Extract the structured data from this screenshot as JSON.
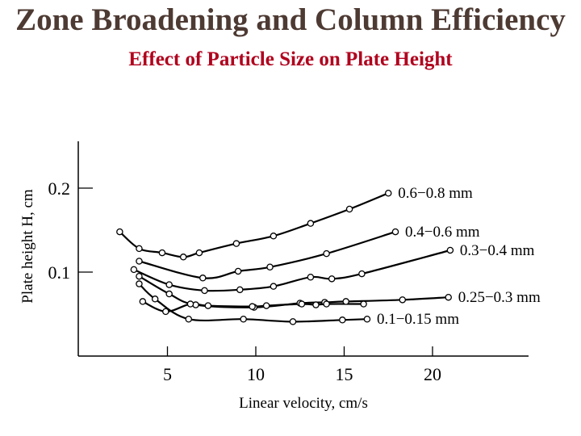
{
  "slide": {
    "title": "Zone Broadening and Column Efficiency",
    "subtitle": "Effect of Particle Size on Plate Height"
  },
  "colors": {
    "title": "#4d3a33",
    "subtitle": "#b0001d",
    "ink": "#000000"
  },
  "chart_data": {
    "type": "line",
    "title": "Effect of Particle Size on Plate Height",
    "xlabel": "Linear velocity, cm/s",
    "ylabel": "Plate height H, cm",
    "xlim": [
      0,
      25
    ],
    "ylim": [
      0,
      0.26
    ],
    "xticks": [
      5,
      10,
      15,
      20
    ],
    "yticks": [
      0.1,
      0.2
    ],
    "grid": false,
    "series": [
      {
        "name": "0.6−0.8 mm",
        "x": [
          2.3,
          3.4,
          4.7,
          5.9,
          6.8,
          8.9,
          11.0,
          13.1,
          15.3,
          17.5
        ],
        "y": [
          0.148,
          0.128,
          0.123,
          0.118,
          0.123,
          0.134,
          0.143,
          0.158,
          0.175,
          0.194
        ]
      },
      {
        "name": "0.4−0.6 mm",
        "x": [
          3.4,
          7.0,
          9.0,
          10.8,
          14.0,
          17.9
        ],
        "y": [
          0.113,
          0.093,
          0.101,
          0.106,
          0.122,
          0.148
        ]
      },
      {
        "name": "0.3−0.4 mm",
        "x": [
          3.1,
          5.1,
          7.1,
          9.1,
          11.0,
          13.1,
          14.3,
          16.0,
          21.0
        ],
        "y": [
          0.103,
          0.085,
          0.078,
          0.079,
          0.083,
          0.094,
          0.092,
          0.098,
          0.126
        ]
      },
      {
        "name": "0.25−0.3 mm",
        "x": [
          3.4,
          5.1,
          6.6,
          9.9,
          12.5,
          13.9,
          15.1,
          18.3,
          20.9
        ],
        "y": [
          0.095,
          0.074,
          0.061,
          0.058,
          0.063,
          0.064,
          0.065,
          0.067,
          0.07
        ]
      },
      {
        "name": "0.1−0.15 mm",
        "x": [
          3.6,
          4.9,
          6.3,
          7.3,
          9.8,
          10.6,
          12.6,
          13.4,
          14.0,
          16.1
        ],
        "y": [
          0.065,
          0.053,
          0.062,
          0.06,
          0.059,
          0.06,
          0.062,
          0.061,
          0.062,
          0.062
        ]
      },
      {
        "name": "0.1−0.15 mm lower",
        "x": [
          3.4,
          4.3,
          6.2,
          9.3,
          12.1,
          14.9,
          16.3
        ],
        "y": [
          0.086,
          0.068,
          0.044,
          0.044,
          0.041,
          0.043,
          0.044
        ]
      }
    ],
    "labels": [
      {
        "text": "0.6−0.8 mm",
        "series": 0
      },
      {
        "text": "0.4−0.6 mm",
        "series": 1
      },
      {
        "text": "0.3−0.4 mm",
        "series": 2
      },
      {
        "text": "0.25−0.3 mm",
        "series": 3
      },
      {
        "text": "0.1−0.15 mm",
        "series": 5
      }
    ]
  }
}
